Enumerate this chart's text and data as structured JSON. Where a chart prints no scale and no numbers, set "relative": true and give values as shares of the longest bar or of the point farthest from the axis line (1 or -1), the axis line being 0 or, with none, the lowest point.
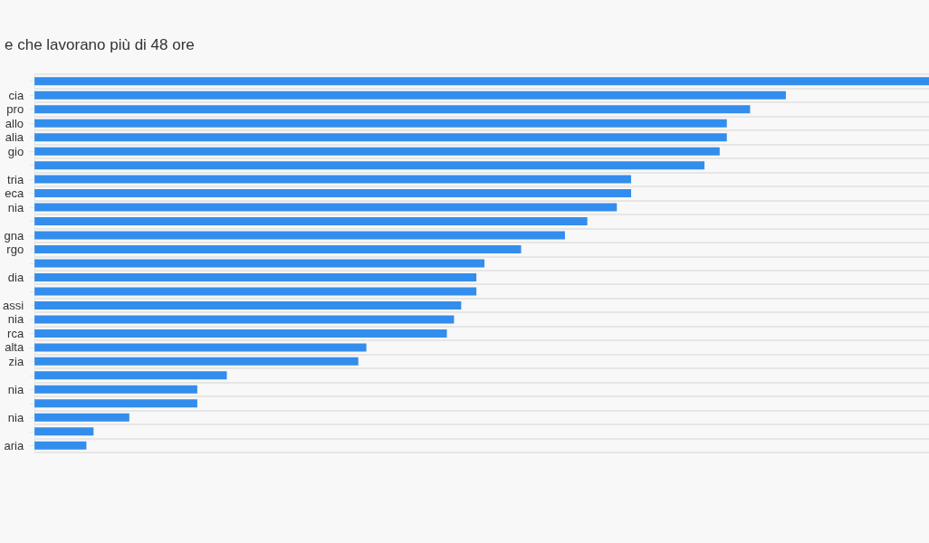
{
  "chart_data": {
    "type": "bar",
    "orientation": "horizontal",
    "relative": true,
    "title": "e che lavorano più di 48 ore",
    "categories": [
      null,
      "cia",
      "pro",
      "allo",
      "alia",
      "gio",
      null,
      "tria",
      "eca",
      "nia",
      null,
      "gna",
      "rgo",
      null,
      "dia",
      null,
      "assi",
      "nia",
      "rca",
      "alta",
      "zia",
      null,
      "nia",
      null,
      "nia",
      null,
      "aria"
    ],
    "values": [
      1,
      0.84,
      0.8,
      0.774,
      0.774,
      0.766,
      0.749,
      0.667,
      0.667,
      0.651,
      0.618,
      0.593,
      0.544,
      0.503,
      0.494,
      0.494,
      0.477,
      0.469,
      0.461,
      0.371,
      0.362,
      0.215,
      0.182,
      0.182,
      0.106,
      0.066,
      0.058
    ],
    "color": "#338ded",
    "grid": "y"
  }
}
